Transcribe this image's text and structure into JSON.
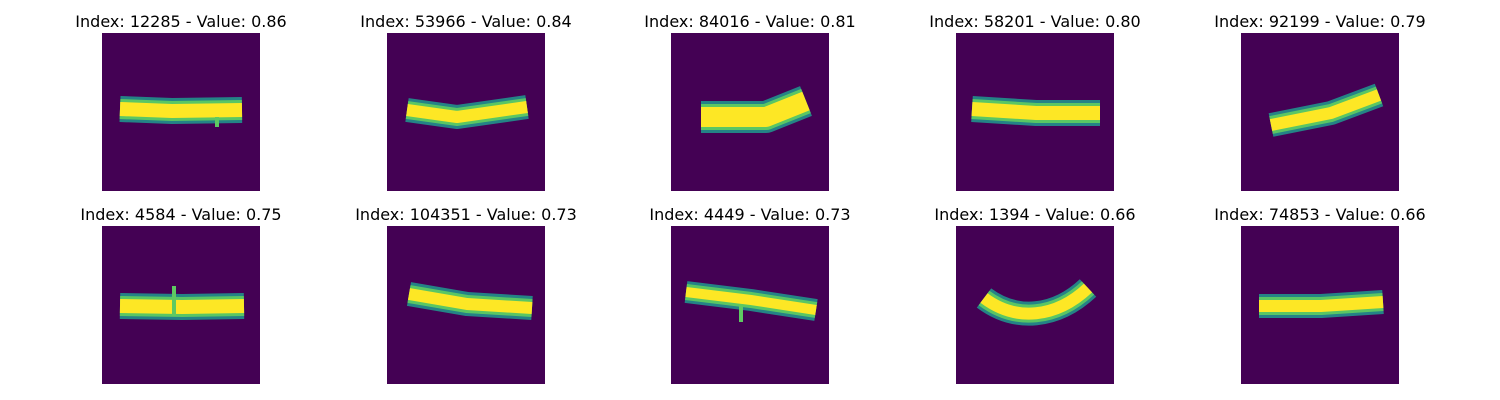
{
  "panels": [
    {
      "title": "Index: 12285 - Value: 0.86",
      "image": "horizontal stroke, slightly bumpy",
      "colormap": "viridis"
    },
    {
      "title": "Index: 53966 - Value: 0.84",
      "image": "shallow V-shaped stroke",
      "colormap": "viridis"
    },
    {
      "title": "Index: 84016 - Value: 0.81",
      "image": "thick stroke rising at right end",
      "colormap": "viridis"
    },
    {
      "title": "Index: 58201 - Value: 0.80",
      "image": "horizontal stroke",
      "colormap": "viridis"
    },
    {
      "title": "Index: 92199 - Value: 0.79",
      "image": "diagonal stroke rising to the right",
      "colormap": "viridis"
    },
    {
      "title": "Index: 4584 - Value: 0.75",
      "image": "horizontal stroke with small vertical tick",
      "colormap": "viridis"
    },
    {
      "title": "Index: 104351 - Value: 0.73",
      "image": "slightly descending stroke",
      "colormap": "viridis"
    },
    {
      "title": "Index: 4449 - Value: 0.73",
      "image": "descending stroke with small tick",
      "colormap": "viridis"
    },
    {
      "title": "Index: 1394 - Value: 0.66",
      "image": "U-shaped curve",
      "colormap": "viridis"
    },
    {
      "title": "Index: 74853 - Value: 0.66",
      "image": "horizontal stroke",
      "colormap": "viridis"
    }
  ],
  "colors": {
    "background": "#440154",
    "stroke_core": "#fde725",
    "stroke_mid": "#5ec962",
    "stroke_edge": "#21918c"
  }
}
